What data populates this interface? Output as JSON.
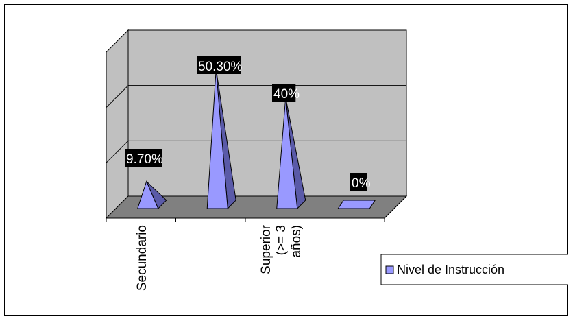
{
  "chart_data": {
    "type": "bar",
    "bar_shape": "pyramid-3d",
    "categories": [
      "Secundario",
      "",
      "Superior (>= 3 años)",
      ""
    ],
    "category_label_lines": [
      [
        "Secundario"
      ],
      [
        ""
      ],
      [
        "Superior",
        "(>= 3",
        "años)"
      ],
      [
        ""
      ]
    ],
    "series": [
      {
        "name": "Nivel de Instrucción",
        "values": [
          9.7,
          50.3,
          40,
          0
        ]
      }
    ],
    "data_labels": [
      "9.70%",
      "50.30%",
      "40%",
      "0%"
    ],
    "ylim": [
      0,
      60
    ],
    "grid": true,
    "legend_position": "right",
    "colors": {
      "plot_wall": "#c0c0c0",
      "floor": "#808080",
      "bar_front": "#9999ff",
      "bar_side": "#5a5aa8",
      "label_bg": "#000000",
      "label_fg": "#ffffff"
    }
  }
}
